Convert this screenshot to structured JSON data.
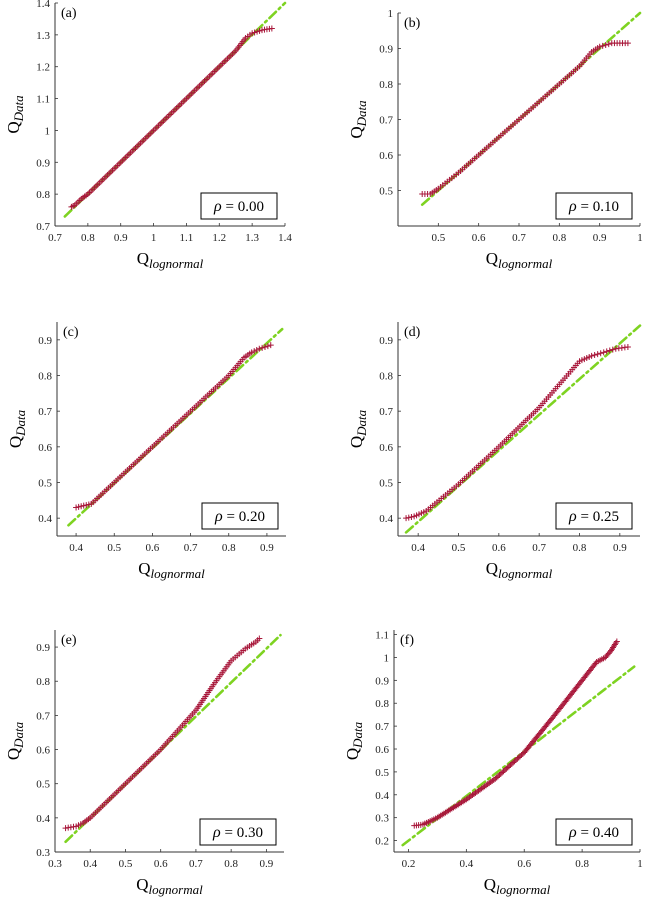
{
  "colors": {
    "data": "#a8173a",
    "ref": "#7ed321",
    "axis": "#333333"
  },
  "labels": {
    "xlabel_main": "Q",
    "xlabel_sub": "lognormal",
    "ylabel_main": "Q",
    "ylabel_sub": "Data",
    "rho_symbol": "ρ"
  },
  "chart_data": [
    {
      "type": "scatter",
      "panel": "(a)",
      "rho": "= 0.00",
      "xlim": [
        0.7,
        1.4
      ],
      "ylim": [
        0.7,
        1.4
      ],
      "xticks": [
        "0.7",
        "0.8",
        "0.9",
        "1",
        "1.1",
        "1.2",
        "1.3",
        "1.4"
      ],
      "yticks": [
        "0.7",
        "0.8",
        "0.9",
        "1",
        "1.1",
        "1.2",
        "1.3",
        "1.4"
      ],
      "series": [
        {
          "values": [
            [
              0.75,
              0.76
            ],
            [
              0.76,
              0.765
            ],
            [
              0.78,
              0.785
            ],
            [
              0.8,
              0.8
            ],
            [
              0.9,
              0.9
            ],
            [
              1.0,
              1.0
            ],
            [
              1.1,
              1.1
            ],
            [
              1.2,
              1.2
            ],
            [
              1.25,
              1.25
            ],
            [
              1.28,
              1.29
            ],
            [
              1.3,
              1.305
            ],
            [
              1.33,
              1.315
            ],
            [
              1.36,
              1.32
            ]
          ]
        },
        {
          "values": [
            [
              0.73,
              0.73
            ],
            [
              1.4,
              1.4
            ]
          ]
        }
      ]
    },
    {
      "type": "scatter",
      "panel": "(b)",
      "rho": "= 0.10",
      "xlim": [
        0.4,
        1.0
      ],
      "ylim": [
        0.4,
        1.0
      ],
      "xticks": [
        "0.5",
        "0.6",
        "0.7",
        "0.8",
        "0.9",
        "1"
      ],
      "yticks": [
        "0.5",
        "0.6",
        "0.7",
        "0.8",
        "0.9",
        "1"
      ],
      "series": [
        {
          "values": [
            [
              0.46,
              0.49
            ],
            [
              0.48,
              0.49
            ],
            [
              0.5,
              0.505
            ],
            [
              0.55,
              0.55
            ],
            [
              0.6,
              0.6
            ],
            [
              0.7,
              0.7
            ],
            [
              0.8,
              0.8
            ],
            [
              0.85,
              0.85
            ],
            [
              0.88,
              0.89
            ],
            [
              0.9,
              0.905
            ],
            [
              0.93,
              0.915
            ],
            [
              0.97,
              0.915
            ]
          ]
        },
        {
          "values": [
            [
              0.46,
              0.46
            ],
            [
              1.0,
              1.0
            ]
          ]
        }
      ]
    },
    {
      "type": "scatter",
      "panel": "(c)",
      "rho": "= 0.20",
      "xlim": [
        0.35,
        0.95
      ],
      "ylim": [
        0.35,
        0.95
      ],
      "xticks": [
        "0.4",
        "0.5",
        "0.6",
        "0.7",
        "0.8",
        "0.9"
      ],
      "yticks": [
        "0.4",
        "0.5",
        "0.6",
        "0.7",
        "0.8",
        "0.9"
      ],
      "series": [
        {
          "values": [
            [
              0.4,
              0.43
            ],
            [
              0.42,
              0.435
            ],
            [
              0.44,
              0.44
            ],
            [
              0.5,
              0.5
            ],
            [
              0.6,
              0.6
            ],
            [
              0.7,
              0.7
            ],
            [
              0.8,
              0.8
            ],
            [
              0.84,
              0.85
            ],
            [
              0.86,
              0.865
            ],
            [
              0.88,
              0.875
            ],
            [
              0.91,
              0.885
            ]
          ]
        },
        {
          "values": [
            [
              0.38,
              0.38
            ],
            [
              0.94,
              0.93
            ]
          ]
        }
      ]
    },
    {
      "type": "scatter",
      "panel": "(d)",
      "rho": "= 0.25",
      "xlim": [
        0.35,
        0.95
      ],
      "ylim": [
        0.35,
        0.95
      ],
      "xticks": [
        "0.4",
        "0.5",
        "0.6",
        "0.7",
        "0.8",
        "0.9"
      ],
      "yticks": [
        "0.4",
        "0.5",
        "0.6",
        "0.7",
        "0.8",
        "0.9"
      ],
      "series": [
        {
          "values": [
            [
              0.37,
              0.4
            ],
            [
              0.39,
              0.405
            ],
            [
              0.42,
              0.42
            ],
            [
              0.5,
              0.495
            ],
            [
              0.6,
              0.6
            ],
            [
              0.7,
              0.71
            ],
            [
              0.75,
              0.775
            ],
            [
              0.8,
              0.84
            ],
            [
              0.83,
              0.855
            ],
            [
              0.86,
              0.865
            ],
            [
              0.89,
              0.875
            ],
            [
              0.92,
              0.88
            ]
          ]
        },
        {
          "values": [
            [
              0.37,
              0.36
            ],
            [
              0.95,
              0.94
            ]
          ]
        }
      ]
    },
    {
      "type": "scatter",
      "panel": "(e)",
      "rho": "= 0.30",
      "xlim": [
        0.3,
        0.95
      ],
      "ylim": [
        0.3,
        0.95
      ],
      "xticks": [
        "0.3",
        "0.4",
        "0.5",
        "0.6",
        "0.7",
        "0.8",
        "0.9"
      ],
      "yticks": [
        "0.3",
        "0.4",
        "0.5",
        "0.6",
        "0.7",
        "0.8",
        "0.9"
      ],
      "series": [
        {
          "values": [
            [
              0.33,
              0.37
            ],
            [
              0.36,
              0.375
            ],
            [
              0.38,
              0.385
            ],
            [
              0.4,
              0.4
            ],
            [
              0.5,
              0.5
            ],
            [
              0.6,
              0.6
            ],
            [
              0.7,
              0.715
            ],
            [
              0.75,
              0.79
            ],
            [
              0.8,
              0.86
            ],
            [
              0.84,
              0.895
            ],
            [
              0.87,
              0.915
            ],
            [
              0.88,
              0.925
            ]
          ]
        },
        {
          "values": [
            [
              0.33,
              0.33
            ],
            [
              0.94,
              0.935
            ]
          ]
        }
      ]
    },
    {
      "type": "scatter",
      "panel": "(f)",
      "rho": "= 0.40",
      "xlim": [
        0.15,
        1.0
      ],
      "ylim": [
        0.15,
        1.12
      ],
      "xticks": [
        "0.2",
        "0.4",
        "0.6",
        "0.8",
        "1"
      ],
      "yticks": [
        "0.2",
        "0.3",
        "0.4",
        "0.5",
        "0.6",
        "0.7",
        "0.8",
        "0.9",
        "1",
        "1.1"
      ],
      "series": [
        {
          "values": [
            [
              0.22,
              0.265
            ],
            [
              0.25,
              0.27
            ],
            [
              0.3,
              0.3
            ],
            [
              0.4,
              0.38
            ],
            [
              0.5,
              0.47
            ],
            [
              0.6,
              0.585
            ],
            [
              0.7,
              0.74
            ],
            [
              0.8,
              0.9
            ],
            [
              0.85,
              0.98
            ],
            [
              0.88,
              1.0
            ],
            [
              0.9,
              1.03
            ],
            [
              0.92,
              1.07
            ]
          ]
        },
        {
          "values": [
            [
              0.18,
              0.18
            ],
            [
              0.98,
              0.96
            ]
          ]
        }
      ]
    }
  ]
}
